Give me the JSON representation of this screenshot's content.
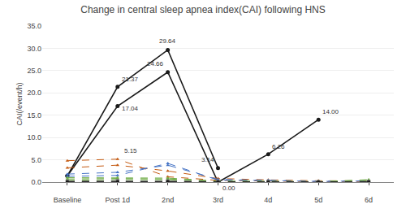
{
  "chart_data": {
    "type": "line",
    "title": "Change in central sleep apnea index(CAI) following HNS",
    "ylabel": "CAI(/event/h)",
    "categories": [
      "Baseline",
      "Post 1d",
      "2nd",
      "3rd",
      "4d",
      "5d",
      "6d"
    ],
    "ylim": [
      0,
      35.0
    ],
    "yticks": [
      {
        "value": 0.0,
        "label": "0.0"
      },
      {
        "value": 5.0,
        "label": "5.0"
      },
      {
        "value": 10.0,
        "label": "10.0"
      },
      {
        "value": 15.0,
        "label": "15.0"
      },
      {
        "value": 20.0,
        "label": "20.0"
      },
      {
        "value": 25.0,
        "label": "25.0"
      },
      {
        "value": 30.0,
        "label": "30.0"
      },
      {
        "value": 35.0,
        "label": "35.0"
      }
    ],
    "grid": true,
    "annotations": [
      {
        "text": "21.37",
        "x": "Post 1d",
        "y": 21.37
      },
      {
        "text": "17.04",
        "x": "Post 1d",
        "y": 17.04
      },
      {
        "text": "29.64",
        "x": "2nd",
        "y": 29.64
      },
      {
        "text": "24.66",
        "x": "2nd",
        "y": 24.66
      },
      {
        "text": "5.15",
        "x": "Post 1d",
        "y": 5.15
      },
      {
        "text": "3.14",
        "x": "3rd",
        "y": 3.14
      },
      {
        "text": "0.00",
        "x": "3rd",
        "y": 0.0
      },
      {
        "text": "6.26",
        "x": "4d",
        "y": 6.26
      },
      {
        "text": "14.00",
        "x": "5d",
        "y": 14.0
      }
    ],
    "series": [
      {
        "values": [
          1.4,
          21.37,
          29.64,
          3.14,
          null,
          null,
          null
        ],
        "color": "#1a1a1a",
        "line_style": "solid",
        "marker": "circle"
      },
      {
        "values": [
          1.4,
          17.04,
          24.66,
          0.0,
          6.26,
          14.0,
          null
        ],
        "color": "#1a1a1a",
        "line_style": "solid",
        "marker": "circle"
      },
      {
        "values": [
          4.8,
          5.15,
          1.2,
          0.4,
          0.25,
          0.08,
          0.15
        ],
        "color": "#c55a11",
        "line_style": "dashed",
        "marker": "triangle-up"
      },
      {
        "values": [
          3.2,
          3.8,
          2.5,
          0.8,
          0.5,
          0.3,
          0.3
        ],
        "color": "#c55a11",
        "line_style": "dashed",
        "marker": "triangle-up"
      },
      {
        "values": [
          1.8,
          2.2,
          3.8,
          0.6,
          0.4,
          0.18,
          0.28
        ],
        "color": "#4472c4",
        "line_style": "dashed",
        "marker": "triangle-up"
      },
      {
        "values": [
          1.3,
          1.5,
          4.2,
          0.45,
          0.35,
          0.15,
          0.25
        ],
        "color": "#4472c4",
        "line_style": "dashed",
        "marker": "triangle-up"
      },
      {
        "values": [
          1.0,
          1.0,
          0.9,
          0.25,
          0.18,
          0.12,
          0.18
        ],
        "color": "#70ad47",
        "line_style": "dashed",
        "marker": "triangle-up"
      },
      {
        "values": [
          0.7,
          0.8,
          0.7,
          0.18,
          0.12,
          0.08,
          0.45
        ],
        "color": "#70ad47",
        "line_style": "dashed",
        "marker": "triangle-up"
      },
      {
        "values": [
          0.4,
          0.55,
          0.55,
          0.12,
          0.08,
          0.06,
          0.55
        ],
        "color": "#70ad47",
        "line_style": "dashed",
        "marker": "triangle-up"
      },
      {
        "values": [
          0.25,
          0.35,
          0.18,
          0.08,
          0.07,
          0.05,
          0.18
        ],
        "color": "#808080",
        "line_style": "dashed",
        "marker": "square"
      },
      {
        "values": [
          0.18,
          0.25,
          0.28,
          0.07,
          0.05,
          0.03,
          0.09
        ],
        "color": "#808080",
        "line_style": "dashed",
        "marker": "square"
      },
      {
        "values": [
          0.12,
          0.18,
          0.22,
          0.05,
          0.04,
          0.025,
          0.07
        ],
        "color": "#808080",
        "line_style": "dashed",
        "marker": "square"
      },
      {
        "values": [
          0.08,
          0.12,
          0.18,
          0.04,
          0.03,
          0.018,
          0.05
        ],
        "color": "#808080",
        "line_style": "dashed",
        "marker": "square"
      },
      {
        "values": [
          0.04,
          0.08,
          0.13,
          0.03,
          0.025,
          0.01,
          0.035
        ],
        "color": "#808080",
        "line_style": "dashed",
        "marker": "square"
      },
      {
        "values": [
          0.035,
          0.07,
          0.11,
          0.025,
          0.018,
          0.009,
          0.025
        ],
        "color": "#1a1a1a",
        "line_style": "dashed",
        "marker": "circle"
      },
      {
        "values": [
          0.025,
          0.05,
          0.09,
          0.018,
          0.013,
          0.007,
          0.018
        ],
        "color": "#1a1a1a",
        "line_style": "dashed",
        "marker": "circle"
      }
    ]
  }
}
